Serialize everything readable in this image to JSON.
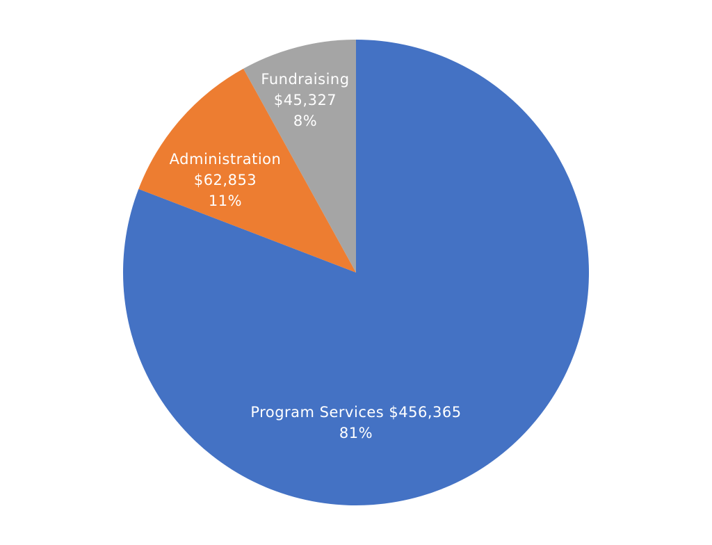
{
  "chart_data": {
    "type": "pie",
    "start_angle_deg": 0,
    "direction": "clockwise",
    "slices": [
      {
        "name": "Program Services",
        "value": 456365,
        "percent": 81,
        "color": "#4472C4",
        "label_lines": [
          "Program Services $456,365",
          "81%"
        ]
      },
      {
        "name": "Administration",
        "value": 62853,
        "percent": 11,
        "color": "#ED7D31",
        "label_lines": [
          "Administration",
          "$62,853",
          "11%"
        ]
      },
      {
        "name": "Fundraising",
        "value": 45327,
        "percent": 8,
        "color": "#A5A5A5",
        "label_lines": [
          "Fundraising",
          "$45,327",
          "8%"
        ]
      }
    ]
  }
}
